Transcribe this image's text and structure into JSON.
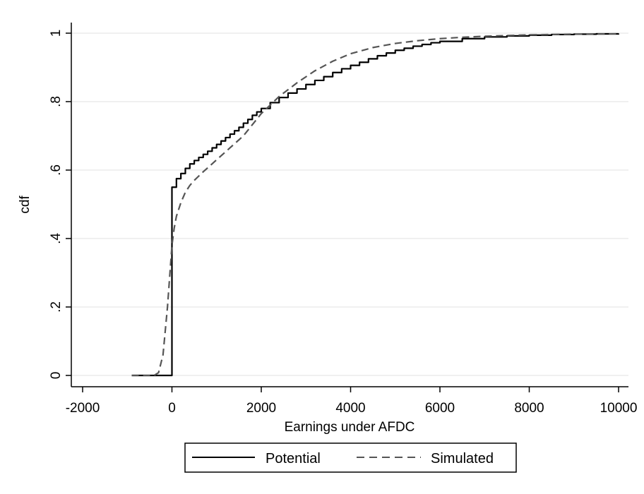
{
  "chart_data": {
    "type": "line",
    "xlabel": "Earnings under AFDC",
    "ylabel": "cdf",
    "xlim": [
      -2000,
      10000
    ],
    "ylim": [
      0,
      1
    ],
    "x_ticks": [
      -2000,
      0,
      2000,
      4000,
      6000,
      8000,
      10000
    ],
    "x_tick_labels": [
      "-2000",
      "0",
      "2000",
      "4000",
      "6000",
      "8000",
      "10000"
    ],
    "y_ticks": [
      0,
      0.2,
      0.4,
      0.6,
      0.8,
      1
    ],
    "y_tick_labels": [
      "0",
      ".2",
      ".4",
      ".6",
      ".8",
      "1"
    ],
    "grid": "horizontal",
    "legend_position": "bottom",
    "series": [
      {
        "name": "Potential",
        "style": "solid-step",
        "color": "#000000",
        "x": [
          -900,
          0,
          0,
          100,
          200,
          300,
          400,
          500,
          600,
          700,
          800,
          900,
          1000,
          1100,
          1200,
          1300,
          1400,
          1500,
          1600,
          1700,
          1800,
          1900,
          2000,
          2200,
          2400,
          2600,
          2800,
          3000,
          3200,
          3400,
          3600,
          3800,
          4000,
          4200,
          4400,
          4600,
          4800,
          5000,
          5200,
          5400,
          5600,
          5800,
          6000,
          6500,
          7000,
          7500,
          8000,
          8500,
          9000,
          9500,
          10000
        ],
        "y": [
          0,
          0,
          0.55,
          0.575,
          0.59,
          0.605,
          0.618,
          0.628,
          0.637,
          0.646,
          0.655,
          0.665,
          0.675,
          0.685,
          0.695,
          0.705,
          0.715,
          0.725,
          0.737,
          0.748,
          0.76,
          0.77,
          0.78,
          0.797,
          0.812,
          0.825,
          0.837,
          0.85,
          0.862,
          0.873,
          0.885,
          0.896,
          0.906,
          0.915,
          0.925,
          0.934,
          0.942,
          0.95,
          0.956,
          0.962,
          0.967,
          0.972,
          0.976,
          0.984,
          0.989,
          0.992,
          0.994,
          0.996,
          0.997,
          0.998,
          0.999
        ]
      },
      {
        "name": "Simulated",
        "style": "dashed",
        "color": "#555555",
        "x": [
          -900,
          -400,
          -300,
          -200,
          -100,
          0,
          50,
          100,
          200,
          300,
          400,
          500,
          700,
          1000,
          1300,
          1600,
          2000,
          2400,
          2800,
          3200,
          3600,
          4000,
          4500,
          5000,
          5500,
          6000,
          6500,
          7000,
          7500,
          8000,
          9000,
          10000
        ],
        "y": [
          0,
          0,
          0.008,
          0.06,
          0.2,
          0.38,
          0.43,
          0.465,
          0.505,
          0.535,
          0.555,
          0.57,
          0.595,
          0.63,
          0.665,
          0.7,
          0.765,
          0.815,
          0.855,
          0.89,
          0.918,
          0.94,
          0.958,
          0.97,
          0.978,
          0.984,
          0.988,
          0.991,
          0.993,
          0.995,
          0.997,
          0.998
        ]
      }
    ]
  }
}
